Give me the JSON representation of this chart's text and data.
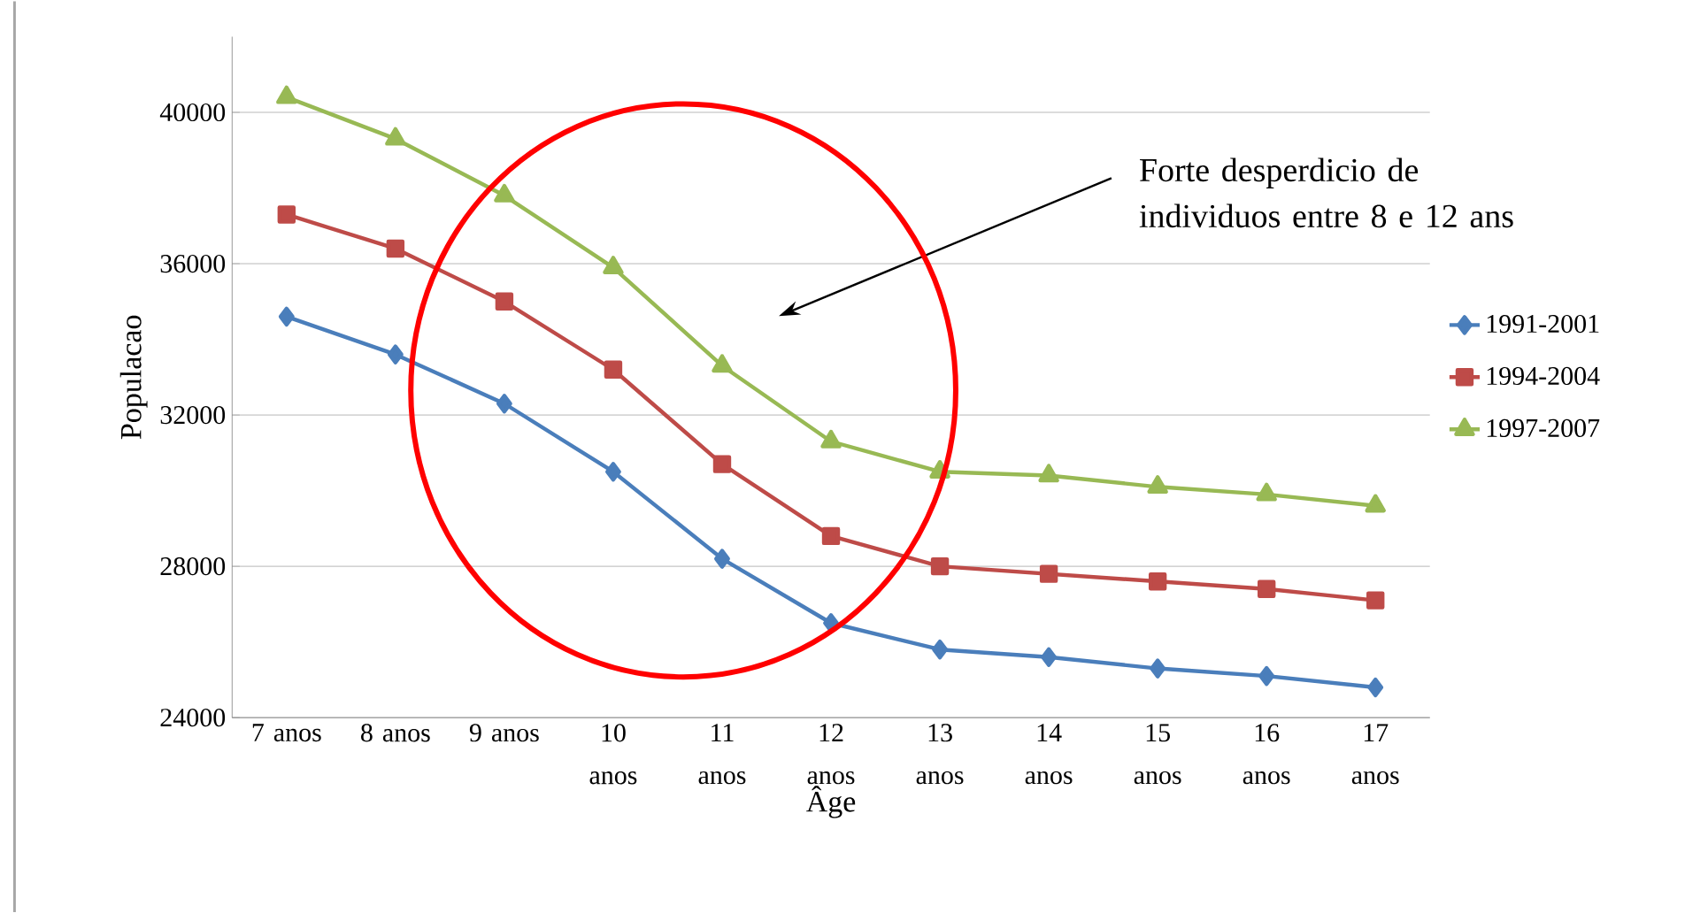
{
  "chart_data": {
    "type": "line",
    "xlabel": "Âge",
    "ylabel": "Populacao",
    "categories": [
      "7 anos",
      "8 anos",
      "9 anos",
      "10 anos",
      "11 anos",
      "12 anos",
      "13 anos",
      "14 anos",
      "15 anos",
      "16 anos",
      "17 anos"
    ],
    "series": [
      {
        "name": "1991-2001",
        "color": "#4a7ebb",
        "marker": "diamond",
        "values": [
          34600,
          33600,
          32300,
          30500,
          28200,
          26500,
          25800,
          25600,
          25300,
          25100,
          24800
        ]
      },
      {
        "name": "1994-2004",
        "color": "#be4b48",
        "marker": "square",
        "values": [
          37300,
          36400,
          35000,
          33200,
          30700,
          28800,
          28000,
          27800,
          27600,
          27400,
          27100
        ]
      },
      {
        "name": "1997-2007",
        "color": "#98b954",
        "marker": "triangle",
        "values": [
          40400,
          39300,
          37800,
          35900,
          33300,
          31300,
          30500,
          30400,
          30100,
          29900,
          29600
        ]
      }
    ],
    "ylim": [
      24000,
      42000
    ],
    "yticks": [
      24000,
      28000,
      32000,
      36000,
      40000
    ],
    "grid": "y",
    "legend": "right",
    "line_style": "solid",
    "annotations": [
      "Forte desperdicio de individuos entre 8 e 12 ans"
    ]
  }
}
